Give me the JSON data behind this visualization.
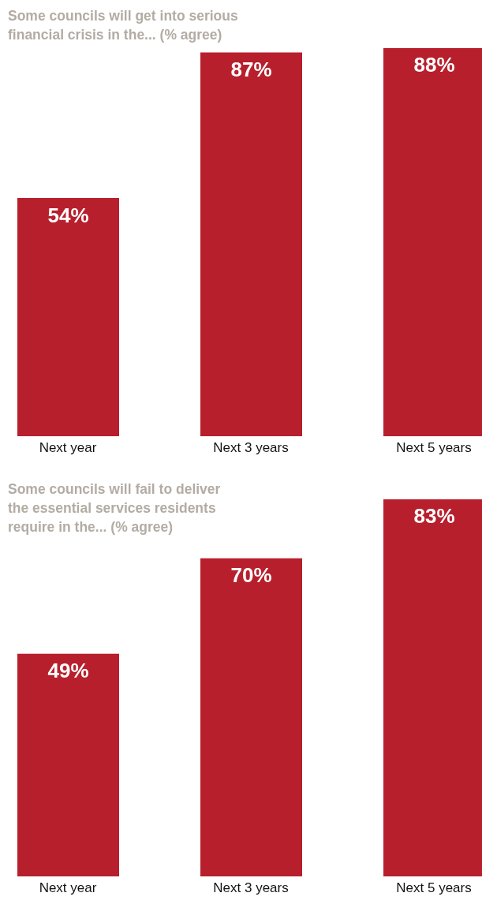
{
  "chart_data": [
    {
      "type": "bar",
      "title": "Some councils will get into serious\nfinancial crisis in the... (% agree)",
      "categories": [
        "Next year",
        "Next 3 years",
        "Next 5 years"
      ],
      "values": [
        54,
        87,
        88
      ],
      "value_labels": [
        "54%",
        "87%",
        "88%"
      ],
      "color": "#b81f2c"
    },
    {
      "type": "bar",
      "title": "Some councils will fail to deliver\nthe essential services residents\nrequire in the... (% agree)",
      "categories": [
        "Next year",
        "Next 3 years",
        "Next 5 years"
      ],
      "values": [
        49,
        70,
        83
      ],
      "value_labels": [
        "49%",
        "70%",
        "83%"
      ],
      "color": "#b81f2c"
    }
  ]
}
